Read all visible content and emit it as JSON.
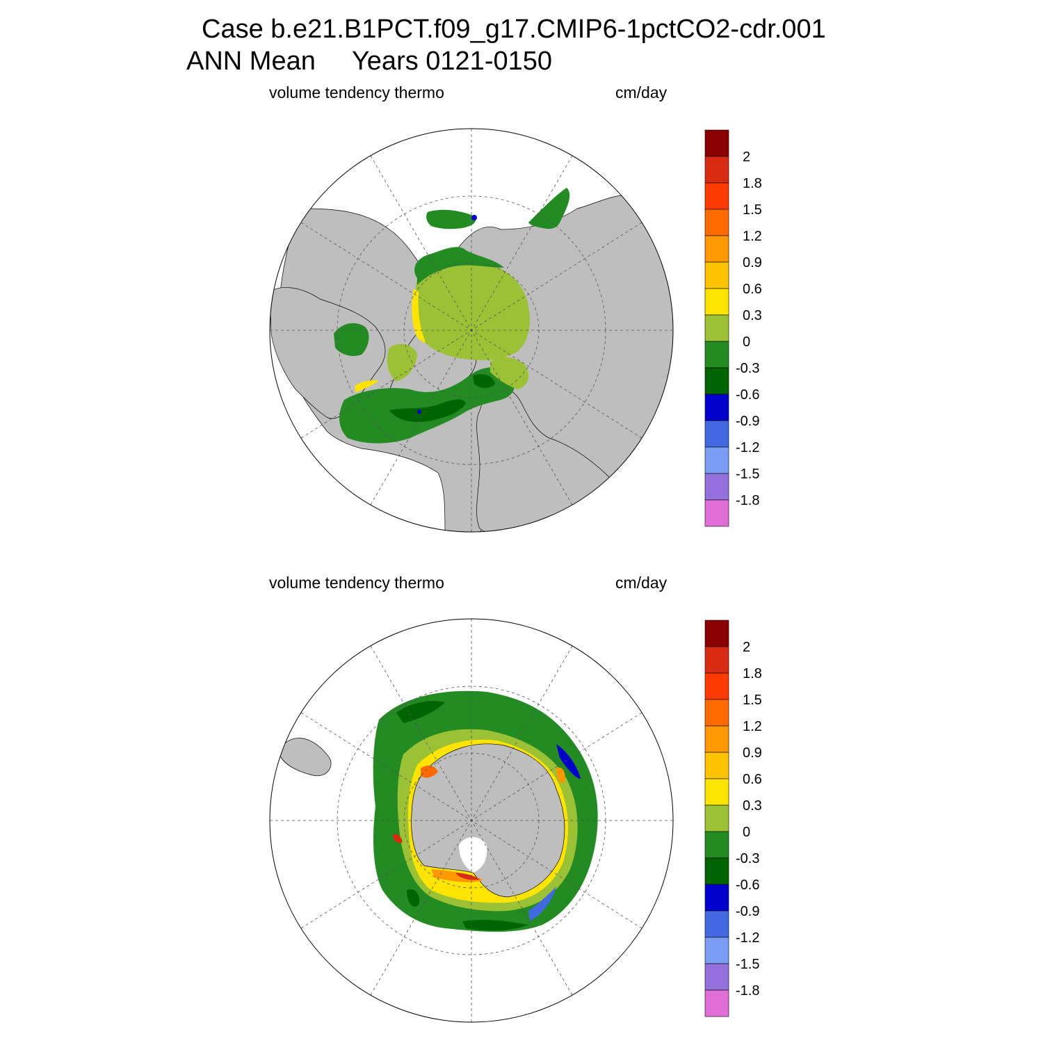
{
  "title_line1": "Case b.e21.B1PCT.f09_g17.CMIP6-1pctCO2-cdr.001",
  "title_line2": "ANN Mean     Years 0121-0150",
  "panels": [
    {
      "id": "north",
      "hemisphere": "Northern Hemisphere",
      "variable": "volume tendency thermo",
      "units": "cm/day"
    },
    {
      "id": "south",
      "hemisphere": "Southern Hemisphere",
      "variable": "volume tendency thermo",
      "units": "cm/day"
    }
  ],
  "colorbar": {
    "labels": [
      "2",
      "1.8",
      "1.5",
      "1.2",
      "0.9",
      "0.6",
      "0.3",
      "0",
      "-0.3",
      "-0.6",
      "-0.9",
      "-1.2",
      "-1.5",
      "-1.8"
    ],
    "colors": [
      "#8b0000",
      "#d92b11",
      "#ff3a00",
      "#ff6a00",
      "#ff9800",
      "#ffc400",
      "#ffe400",
      "#9ac234",
      "#228b22",
      "#006400",
      "#0000cd",
      "#4169e1",
      "#7b9ef5",
      "#9370db",
      "#e070d8"
    ]
  },
  "colors": {
    "land": "#bebebe",
    "ocean": "#ffffff",
    "grid": "#555555"
  }
}
